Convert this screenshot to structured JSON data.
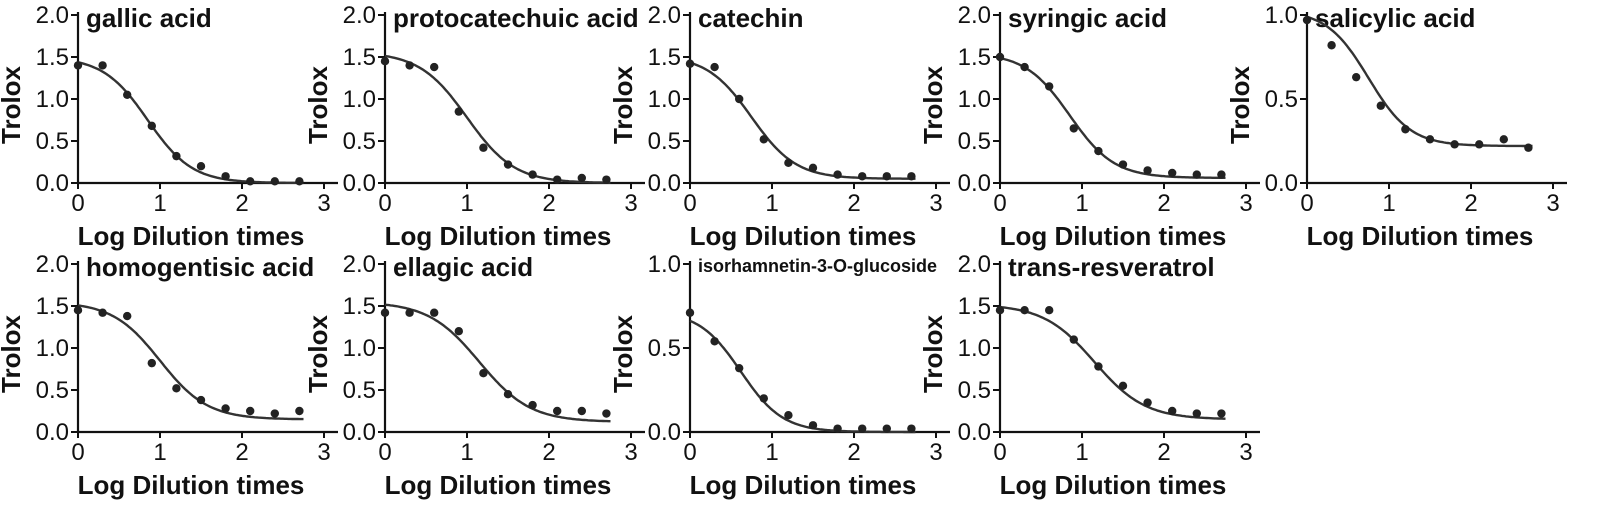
{
  "chart_data": [
    {
      "type": "scatter",
      "title": "gallic acid",
      "xlabel": "Log Dilution times",
      "ylabel": "Trolox",
      "xlim": [
        0,
        3
      ],
      "ylim": [
        0,
        2.0
      ],
      "xticks": [
        "0",
        "1",
        "2",
        "3"
      ],
      "yticks": [
        "0.0",
        "0.5",
        "1.0",
        "1.5",
        "2.0"
      ],
      "x": [
        0,
        0.3,
        0.6,
        0.9,
        1.2,
        1.5,
        1.8,
        2.1,
        2.4,
        2.7
      ],
      "y": [
        1.4,
        1.4,
        1.05,
        0.68,
        0.32,
        0.2,
        0.08,
        0.02,
        0.02,
        0.02
      ],
      "fit": {
        "top": 1.5,
        "bottom": 0.0,
        "x50": 0.85,
        "slope": 1.6
      }
    },
    {
      "type": "scatter",
      "title": "protocatechuic acid",
      "xlabel": "Log Dilution times",
      "ylabel": "Trolox",
      "xlim": [
        0,
        3
      ],
      "ylim": [
        0,
        2.0
      ],
      "xticks": [
        "0",
        "1",
        "2",
        "3"
      ],
      "yticks": [
        "0.0",
        "0.5",
        "1.0",
        "1.5",
        "2.0"
      ],
      "x": [
        0,
        0.3,
        0.6,
        0.9,
        1.2,
        1.5,
        1.8,
        2.1,
        2.4,
        2.7
      ],
      "y": [
        1.45,
        1.4,
        1.38,
        0.85,
        0.42,
        0.22,
        0.1,
        0.04,
        0.06,
        0.04
      ],
      "fit": {
        "top": 1.56,
        "bottom": 0.0,
        "x50": 1.0,
        "slope": 1.5
      }
    },
    {
      "type": "scatter",
      "title": "catechin",
      "xlabel": "Log Dilution times",
      "ylabel": "Trolox",
      "xlim": [
        0,
        3
      ],
      "ylim": [
        0,
        2.0
      ],
      "xticks": [
        "0",
        "1",
        "2",
        "3"
      ],
      "yticks": [
        "0.0",
        "0.5",
        "1.0",
        "1.5",
        "2.0"
      ],
      "x": [
        0,
        0.3,
        0.6,
        0.9,
        1.2,
        1.5,
        1.8,
        2.1,
        2.4,
        2.7
      ],
      "y": [
        1.42,
        1.38,
        1.0,
        0.52,
        0.24,
        0.18,
        0.1,
        0.08,
        0.08,
        0.08
      ],
      "fit": {
        "top": 1.52,
        "bottom": 0.05,
        "x50": 0.75,
        "slope": 1.6
      }
    },
    {
      "type": "scatter",
      "title": "syringic acid",
      "xlabel": "Log Dilution times",
      "ylabel": "Trolox",
      "xlim": [
        0,
        3
      ],
      "ylim": [
        0,
        2.0
      ],
      "xticks": [
        "0",
        "1",
        "2",
        "3"
      ],
      "yticks": [
        "0.0",
        "0.5",
        "1.0",
        "1.5",
        "2.0"
      ],
      "x": [
        0,
        0.3,
        0.6,
        0.9,
        1.2,
        1.5,
        1.8,
        2.1,
        2.4,
        2.7
      ],
      "y": [
        1.5,
        1.38,
        1.15,
        0.65,
        0.38,
        0.22,
        0.15,
        0.12,
        0.1,
        0.1
      ],
      "fit": {
        "top": 1.55,
        "bottom": 0.06,
        "x50": 0.85,
        "slope": 1.6
      }
    },
    {
      "type": "scatter",
      "title": "salicylic acid",
      "xlabel": "Log Dilution times",
      "ylabel": "Trolox",
      "xlim": [
        0,
        3
      ],
      "ylim": [
        0,
        1.0
      ],
      "xticks": [
        "0",
        "1",
        "2",
        "3"
      ],
      "yticks": [
        "0.0",
        "0.5",
        "1.0"
      ],
      "x": [
        0,
        0.3,
        0.6,
        0.9,
        1.2,
        1.5,
        1.8,
        2.1,
        2.4,
        2.7
      ],
      "y": [
        0.97,
        0.82,
        0.63,
        0.46,
        0.32,
        0.26,
        0.23,
        0.23,
        0.26,
        0.21
      ],
      "fit": {
        "top": 1.03,
        "bottom": 0.22,
        "x50": 0.75,
        "slope": 1.7
      }
    },
    {
      "type": "scatter",
      "title": "homogentisic acid",
      "xlabel": "Log Dilution times",
      "ylabel": "Trolox",
      "xlim": [
        0,
        3
      ],
      "ylim": [
        0,
        2.0
      ],
      "xticks": [
        "0",
        "1",
        "2",
        "3"
      ],
      "yticks": [
        "0.0",
        "0.5",
        "1.0",
        "1.5",
        "2.0"
      ],
      "x": [
        0,
        0.3,
        0.6,
        0.9,
        1.2,
        1.5,
        1.8,
        2.1,
        2.4,
        2.7
      ],
      "y": [
        1.45,
        1.42,
        1.38,
        0.82,
        0.52,
        0.38,
        0.28,
        0.25,
        0.22,
        0.25
      ],
      "fit": {
        "top": 1.55,
        "bottom": 0.15,
        "x50": 1.0,
        "slope": 1.5
      }
    },
    {
      "type": "scatter",
      "title": "ellagic acid",
      "xlabel": "Log Dilution times",
      "ylabel": "Trolox",
      "xlim": [
        0,
        3
      ],
      "ylim": [
        0,
        2.0
      ],
      "xticks": [
        "0",
        "1",
        "2",
        "3"
      ],
      "yticks": [
        "0.0",
        "0.5",
        "1.0",
        "1.5",
        "2.0"
      ],
      "x": [
        0,
        0.3,
        0.6,
        0.9,
        1.2,
        1.5,
        1.8,
        2.1,
        2.4,
        2.7
      ],
      "y": [
        1.42,
        1.42,
        1.42,
        1.2,
        0.7,
        0.45,
        0.32,
        0.25,
        0.25,
        0.22
      ],
      "fit": {
        "top": 1.55,
        "bottom": 0.12,
        "x50": 1.15,
        "slope": 1.4
      }
    },
    {
      "type": "scatter",
      "title": "isorhamnetin-3-O-glucoside",
      "xlabel": "Log Dilution times",
      "ylabel": "Trolox",
      "xlim": [
        0,
        3
      ],
      "ylim": [
        0,
        1.0
      ],
      "xticks": [
        "0",
        "1",
        "2",
        "3"
      ],
      "yticks": [
        "0.0",
        "0.5",
        "1.0"
      ],
      "x": [
        0,
        0.3,
        0.6,
        0.9,
        1.2,
        1.5,
        1.8,
        2.1,
        2.4,
        2.7
      ],
      "y": [
        0.71,
        0.54,
        0.38,
        0.2,
        0.1,
        0.04,
        0.02,
        0.02,
        0.02,
        0.02
      ],
      "fit": {
        "top": 0.72,
        "bottom": 0.0,
        "x50": 0.62,
        "slope": 1.7
      }
    },
    {
      "type": "scatter",
      "title": "trans-resveratrol",
      "xlabel": "Log Dilution times",
      "ylabel": "Trolox",
      "xlim": [
        0,
        3
      ],
      "ylim": [
        0,
        2.0
      ],
      "xticks": [
        "0",
        "1",
        "2",
        "3"
      ],
      "yticks": [
        "0.0",
        "0.5",
        "1.0",
        "1.5",
        "2.0"
      ],
      "x": [
        0,
        0.3,
        0.6,
        0.9,
        1.2,
        1.5,
        1.8,
        2.1,
        2.4,
        2.7
      ],
      "y": [
        1.45,
        1.45,
        1.45,
        1.1,
        0.78,
        0.55,
        0.35,
        0.25,
        0.22,
        0.22
      ],
      "fit": {
        "top": 1.52,
        "bottom": 0.15,
        "x50": 1.15,
        "slope": 1.4
      }
    }
  ]
}
